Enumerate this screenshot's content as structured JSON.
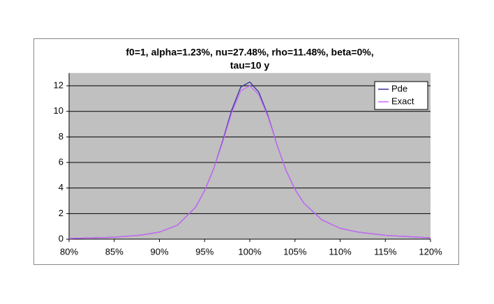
{
  "chart_data": {
    "type": "line",
    "title": [
      "f0=1, alpha=1.23%, nu=27.48%, rho=11.48%, beta=0%,",
      "tau=10 y"
    ],
    "x": [
      80,
      85,
      88,
      90,
      92,
      94,
      95,
      96,
      97,
      98,
      99,
      100,
      101,
      102,
      103,
      104,
      105,
      106,
      108,
      110,
      112,
      115,
      120
    ],
    "series": [
      {
        "name": "Pde",
        "color": "#333399",
        "values": [
          0.05,
          0.15,
          0.32,
          0.55,
          1.1,
          2.5,
          3.8,
          5.5,
          7.7,
          10.1,
          11.9,
          12.3,
          11.5,
          9.7,
          7.4,
          5.4,
          3.9,
          2.8,
          1.5,
          0.85,
          0.55,
          0.3,
          0.1
        ]
      },
      {
        "name": "Exact",
        "color": "#cc66ff",
        "values": [
          0.05,
          0.15,
          0.32,
          0.55,
          1.1,
          2.5,
          3.8,
          5.5,
          7.6,
          9.9,
          11.6,
          12.0,
          11.3,
          9.6,
          7.4,
          5.4,
          3.9,
          2.8,
          1.5,
          0.85,
          0.55,
          0.3,
          0.1
        ]
      }
    ],
    "xlim": [
      80,
      120
    ],
    "xticks": [
      {
        "value": 80,
        "label": "80%"
      },
      {
        "value": 85,
        "label": "85%"
      },
      {
        "value": 90,
        "label": "90%"
      },
      {
        "value": 95,
        "label": "95%"
      },
      {
        "value": 100,
        "label": "100%"
      },
      {
        "value": 105,
        "label": "105%"
      },
      {
        "value": 110,
        "label": "110%"
      },
      {
        "value": 115,
        "label": "115%"
      },
      {
        "value": 120,
        "label": "120%"
      }
    ],
    "ylim": [
      0,
      13
    ],
    "yticks": [
      0,
      2,
      4,
      6,
      8,
      10,
      12
    ],
    "grid": true,
    "legend": "top-right"
  }
}
